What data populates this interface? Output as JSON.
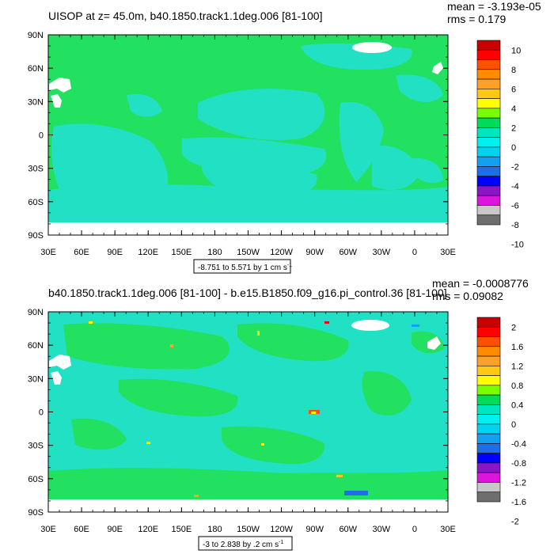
{
  "colors": {
    "land_green": "#22e060",
    "ocean_cyan": "#22e0c4",
    "white": "#ffffff",
    "scale": [
      "#6e6e6e",
      "#c8c8c8",
      "#dc14dc",
      "#8c14c8",
      "#0000ff",
      "#1e6ee6",
      "#14a0f0",
      "#00d2f0",
      "#00f0f0",
      "#00e6be",
      "#00dc5a",
      "#78ff00",
      "#ffff00",
      "#ffc814",
      "#ffa028",
      "#ff8c00",
      "#ff5000",
      "#ff0000",
      "#c80000"
    ]
  },
  "chart_data": [
    {
      "type": "heatmap",
      "title": "UISOP at z=  45.0m, b40.1850.track1.1deg.006 [81-100]",
      "stats": {
        "mean": "mean = -3.193e-05",
        "rms": "rms = 0.179"
      },
      "lat_ticks": [
        "90N",
        "60N",
        "30N",
        "0",
        "30S",
        "60S",
        "90S"
      ],
      "lon_ticks": [
        "30E",
        "60E",
        "90E",
        "120E",
        "150E",
        "180",
        "150W",
        "120W",
        "90W",
        "60W",
        "30W",
        "0",
        "30E"
      ],
      "colorbar": {
        "labels": [
          "10",
          "8",
          "6",
          "4",
          "2",
          "0",
          "-2",
          "-4",
          "-6",
          "-8",
          "-10"
        ],
        "range": [
          -10,
          10
        ]
      },
      "caption": "-8.751 to 5.571 by 1 cm s",
      "caption_exp": "-1",
      "data_range": [
        -8.751,
        5.571
      ],
      "units": "cm s^-1"
    },
    {
      "type": "heatmap",
      "title": "b40.1850.track1.1deg.006 [81-100] - b.e15.B1850.f09_g16.pi_control.36 [81-100]",
      "stats": {
        "mean": "mean = -0.0008776",
        "rms": "rms = 0.09082"
      },
      "lat_ticks": [
        "90N",
        "60N",
        "30N",
        "0",
        "30S",
        "60S",
        "90S"
      ],
      "lon_ticks": [
        "30E",
        "60E",
        "90E",
        "120E",
        "150E",
        "180",
        "150W",
        "120W",
        "90W",
        "60W",
        "30W",
        "0",
        "30E"
      ],
      "colorbar": {
        "labels": [
          "2",
          "1.6",
          "1.2",
          "0.8",
          "0.4",
          "0",
          "-0.4",
          "-0.8",
          "-1.2",
          "-1.6",
          "-2"
        ],
        "range": [
          -2,
          2
        ]
      },
      "caption": "-3 to 2.838 by .2 cm s",
      "caption_exp": "-1",
      "data_range": [
        -3,
        2.838
      ],
      "units": "cm s^-1"
    }
  ]
}
